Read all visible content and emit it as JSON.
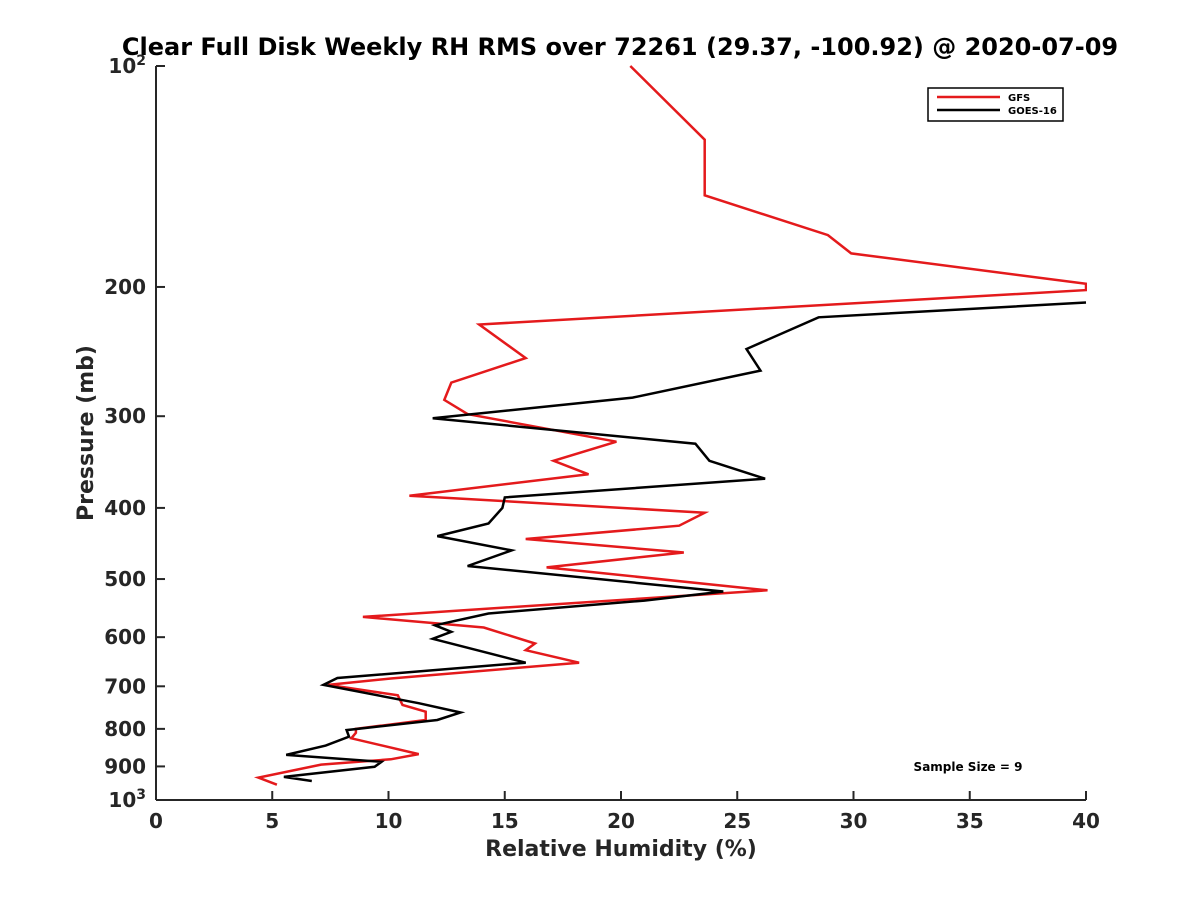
{
  "chart_data": {
    "type": "line",
    "title": "Clear Full Disk Weekly RH RMS over 72261 (29.37, -100.92) @ 2020-07-09",
    "xlabel": "Relative Humidity (%)",
    "ylabel": "Pressure (mb)",
    "xlim": [
      0,
      40
    ],
    "ylim": [
      100,
      1000
    ],
    "y_scale": "log",
    "y_reversed": true,
    "x_ticks": [
      "0",
      "5",
      "10",
      "15",
      "20",
      "25",
      "30",
      "35",
      "40"
    ],
    "y_ticks": [
      {
        "value": 100,
        "base": "10",
        "exp": "2"
      },
      {
        "value": 200,
        "label": "200"
      },
      {
        "value": 300,
        "label": "300"
      },
      {
        "value": 400,
        "label": "400"
      },
      {
        "value": 500,
        "label": "500"
      },
      {
        "value": 600,
        "label": "600"
      },
      {
        "value": 700,
        "label": "700"
      },
      {
        "value": 800,
        "label": "800"
      },
      {
        "value": 900,
        "label": "900"
      },
      {
        "value": 1000,
        "base": "10",
        "exp": "3"
      }
    ],
    "legend_position": "top-right",
    "annotation": "Sample Size = 9",
    "series": [
      {
        "name": "GFS",
        "color": "#e41a1c",
        "points": [
          [
            20.4,
            100
          ],
          [
            23.6,
            126
          ],
          [
            23.6,
            150
          ],
          [
            28.9,
            170
          ],
          [
            29.9,
            180
          ],
          [
            40.0,
            198
          ],
          [
            40.0,
            202
          ],
          [
            13.9,
            225
          ],
          [
            15.9,
            250
          ],
          [
            12.7,
            270
          ],
          [
            12.4,
            285
          ],
          [
            13.4,
            298
          ],
          [
            19.8,
            325
          ],
          [
            17.1,
            345
          ],
          [
            18.6,
            360
          ],
          [
            10.9,
            385
          ],
          [
            23.6,
            406
          ],
          [
            22.5,
            423
          ],
          [
            15.9,
            441
          ],
          [
            22.7,
            460
          ],
          [
            16.8,
            482
          ],
          [
            26.3,
            518
          ],
          [
            8.9,
            563
          ],
          [
            14.1,
            582
          ],
          [
            16.3,
            612
          ],
          [
            15.9,
            625
          ],
          [
            18.2,
            650
          ],
          [
            10.1,
            683
          ],
          [
            7.4,
            697
          ],
          [
            10.4,
            720
          ],
          [
            10.6,
            742
          ],
          [
            11.6,
            758
          ],
          [
            11.6,
            778
          ],
          [
            8.6,
            800
          ],
          [
            8.6,
            810
          ],
          [
            8.4,
            824
          ],
          [
            11.3,
            866
          ],
          [
            10.1,
            880
          ],
          [
            7.1,
            895
          ],
          [
            4.4,
            932
          ],
          [
            5.2,
            953
          ]
        ]
      },
      {
        "name": "GOES-16",
        "color": "#000000",
        "points": [
          [
            40.0,
            210
          ],
          [
            28.5,
            220
          ],
          [
            25.4,
            243
          ],
          [
            26.0,
            260
          ],
          [
            20.5,
            283
          ],
          [
            11.9,
            302
          ],
          [
            23.2,
            327
          ],
          [
            23.8,
            345
          ],
          [
            26.2,
            365
          ],
          [
            15.0,
            387
          ],
          [
            14.9,
            400
          ],
          [
            14.3,
            420
          ],
          [
            12.1,
            437
          ],
          [
            15.3,
            457
          ],
          [
            13.4,
            480
          ],
          [
            24.4,
            520
          ],
          [
            21.0,
            535
          ],
          [
            14.3,
            557
          ],
          [
            12.0,
            578
          ],
          [
            12.7,
            590
          ],
          [
            11.9,
            603
          ],
          [
            14.4,
            632
          ],
          [
            15.9,
            650
          ],
          [
            7.8,
            682
          ],
          [
            7.2,
            697
          ],
          [
            11.3,
            738
          ],
          [
            13.1,
            760
          ],
          [
            12.1,
            778
          ],
          [
            8.2,
            803
          ],
          [
            8.3,
            820
          ],
          [
            7.3,
            843
          ],
          [
            5.6,
            868
          ],
          [
            9.7,
            887
          ],
          [
            9.4,
            901
          ],
          [
            5.5,
            930
          ],
          [
            6.7,
            942
          ]
        ]
      }
    ]
  }
}
